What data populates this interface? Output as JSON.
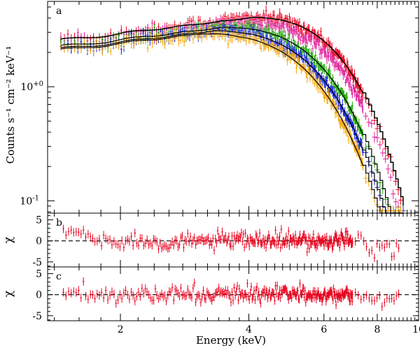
{
  "chart_data": [
    {
      "panel": "a",
      "type": "scatter",
      "x_scale": "log",
      "y_scale": "log",
      "xlim": [
        1.35,
        10
      ],
      "ylim": [
        0.078,
        5.6
      ],
      "ylabel": "Counts s⁻¹ cm⁻² keV⁻¹",
      "y_ticks": [
        {
          "value": 1,
          "label": "10+0"
        },
        {
          "value": 0.1,
          "label": "10-1"
        }
      ],
      "series": [
        {
          "color": "#e8001c",
          "peak": 4.1,
          "scale": 1.22,
          "edge": 9.1
        },
        {
          "color": "#e0209c",
          "peak": 3.9,
          "scale": 1.12,
          "edge": 9.1
        },
        {
          "color": "#17a500",
          "peak": 3.5,
          "scale": 1.0,
          "edge": 9.1
        },
        {
          "color": "#0d1fd6",
          "peak": 3.3,
          "scale": 0.93,
          "edge": 9.2
        },
        {
          "color": "#f5a300",
          "peak": 3.1,
          "scale": 0.88,
          "edge": 9.1
        }
      ],
      "model_color": "#000000"
    },
    {
      "panel": "b",
      "type": "scatter",
      "x_scale": "log",
      "ylim": [
        -6.2,
        6.6
      ],
      "ylabel": "χ",
      "y_ticks": [
        5,
        0,
        -5
      ],
      "reference_line": 0,
      "color": "#e8001c"
    },
    {
      "panel": "c",
      "type": "scatter",
      "x_scale": "log",
      "ylim": [
        -6.2,
        6.6
      ],
      "ylabel": "χ",
      "y_ticks": [
        5,
        0,
        -5
      ],
      "reference_line": 0,
      "color": "#e8001c"
    }
  ],
  "x_axis": {
    "label": "Energy (keV)",
    "ticks": [
      2,
      4,
      6,
      8,
      10
    ]
  }
}
